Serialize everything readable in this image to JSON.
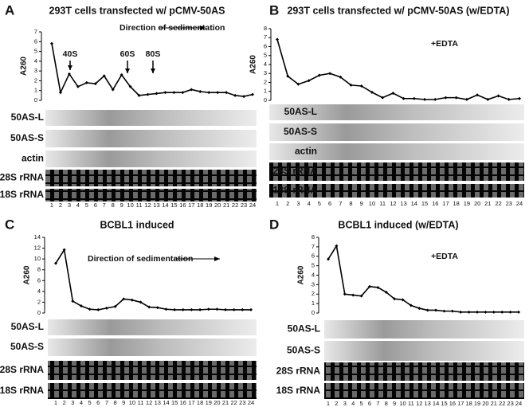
{
  "chart_data": [
    {
      "type": "line",
      "panel": "A",
      "title": "293T cells transfected w/ pCMV-50AS",
      "ylabel": "A260",
      "annotations": [
        "Direction of sedimentation",
        "40S",
        "60S",
        "80S"
      ],
      "x": [
        1,
        2,
        3,
        4,
        5,
        6,
        7,
        8,
        9,
        10,
        11,
        12,
        13,
        14,
        15,
        16,
        17,
        18,
        19,
        20,
        21,
        22,
        23,
        24
      ],
      "values": [
        5.8,
        0.8,
        2.7,
        1.4,
        1.8,
        1.7,
        2.5,
        1.1,
        2.6,
        1.4,
        0.5,
        0.6,
        0.7,
        0.8,
        0.8,
        0.8,
        1.1,
        0.9,
        0.8,
        0.8,
        0.8,
        0.5,
        0.4,
        0.6
      ],
      "color": "#000000",
      "ylim": [
        0,
        7
      ],
      "yticks": [
        0,
        1,
        2,
        3,
        4,
        5,
        6,
        7
      ],
      "blots": [
        "50AS-L",
        "50AS-S",
        "actin",
        "28S rRNA",
        "18S rRNA"
      ]
    },
    {
      "type": "line",
      "panel": "B",
      "title": "293T cells transfected w/ pCMV-50AS (w/EDTA)",
      "ylabel": "A260",
      "annotations": [
        "+EDTA"
      ],
      "x": [
        1,
        2,
        3,
        4,
        5,
        6,
        7,
        8,
        9,
        10,
        11,
        12,
        13,
        14,
        15,
        16,
        17,
        18,
        19,
        20,
        21,
        22,
        23,
        24
      ],
      "values": [
        6.8,
        2.7,
        1.8,
        2.2,
        2.8,
        3.0,
        2.6,
        1.7,
        1.6,
        0.9,
        0.3,
        0.8,
        0.2,
        0.2,
        0.1,
        0.1,
        0.3,
        0.3,
        0.1,
        0.6,
        0.1,
        0.5,
        0.1,
        0.2
      ],
      "color": "#000000",
      "ylim": [
        0,
        8
      ],
      "yticks": [
        0,
        1,
        2,
        3,
        4,
        5,
        6,
        7,
        8
      ],
      "blots": [
        "50AS-L",
        "50AS-S",
        "actin",
        "28S rRNA",
        "18S rRNA"
      ]
    },
    {
      "type": "line",
      "panel": "C",
      "title": "BCBL1 induced",
      "ylabel": "A260",
      "annotations": [
        "Direction of sedimentation"
      ],
      "x": [
        1,
        2,
        3,
        4,
        5,
        6,
        7,
        8,
        9,
        10,
        11,
        12,
        13,
        14,
        15,
        16,
        17,
        18,
        19,
        20,
        21,
        22,
        23,
        24
      ],
      "values": [
        9.2,
        11.7,
        2.2,
        1.3,
        0.7,
        0.6,
        0.9,
        1.2,
        2.6,
        2.4,
        2.0,
        1.1,
        1.0,
        0.7,
        0.6,
        0.6,
        0.6,
        0.6,
        0.7,
        0.7,
        0.6,
        0.6,
        0.6,
        0.6
      ],
      "color": "#000000",
      "ylim": [
        0,
        14
      ],
      "yticks": [
        0,
        2,
        4,
        6,
        8,
        10,
        12,
        14
      ],
      "blots": [
        "50AS-L",
        "50AS-S",
        "28S rRNA",
        "18S rRNA"
      ]
    },
    {
      "type": "line",
      "panel": "D",
      "title": "BCBL1 induced  (w/EDTA)",
      "ylabel": "A260",
      "annotations": [
        "+EDTA"
      ],
      "x": [
        1,
        2,
        3,
        4,
        5,
        6,
        7,
        8,
        9,
        10,
        11,
        12,
        13,
        14,
        15,
        16,
        17,
        18,
        19,
        20,
        21,
        22,
        23,
        24
      ],
      "values": [
        5.7,
        7.1,
        2.0,
        1.9,
        1.8,
        2.8,
        2.7,
        2.2,
        1.5,
        1.4,
        0.8,
        0.5,
        0.3,
        0.3,
        0.2,
        0.2,
        0.1,
        0.1,
        0.1,
        0.1,
        0.1,
        0.1,
        0.1,
        0.1
      ],
      "color": "#000000",
      "ylim": [
        0,
        8
      ],
      "yticks": [
        0,
        1,
        2,
        3,
        4,
        5,
        6,
        7,
        8
      ],
      "blots": [
        "50AS-L",
        "50AS-S",
        "28S rRNA",
        "18S rRNA"
      ]
    }
  ]
}
